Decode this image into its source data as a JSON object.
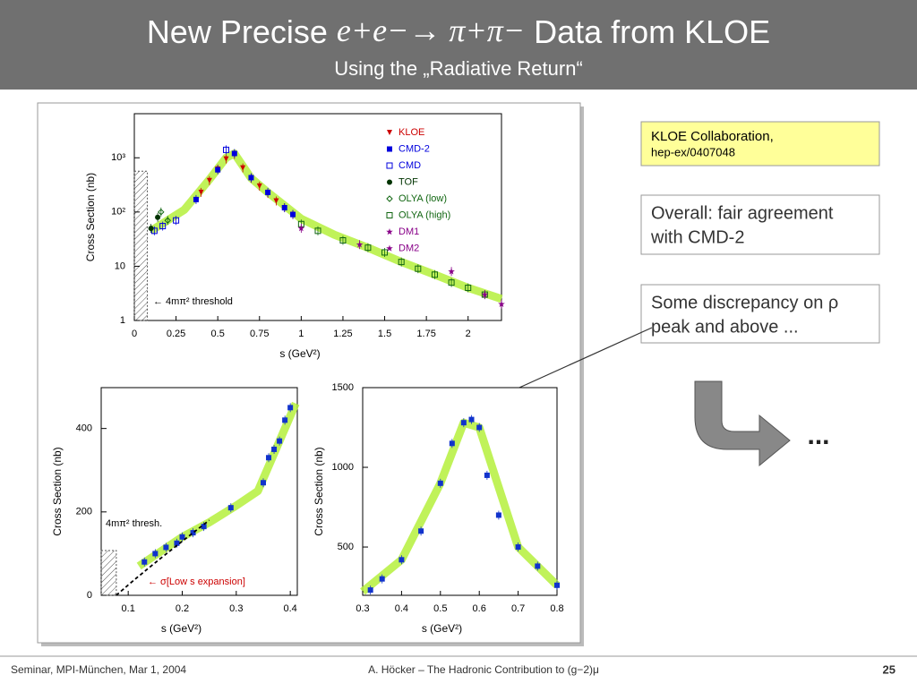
{
  "slide": {
    "title_parts": [
      "New Precise ",
      "e+e−→ π+π−",
      " Data from KLOE"
    ],
    "subtitle": "Using the „Radiative Return“",
    "boxes": [
      [
        "KLOE Collaboration,",
        "hep-ex/0407048"
      ],
      [
        "Overall: fair agreement",
        "with CMD-2"
      ],
      [
        "Some discrepancy on ρ",
        "peak and above ..."
      ]
    ],
    "ellipsis": "...",
    "footer": {
      "left": "Seminar, MPI-München, Mar 1, 2004",
      "center": "A. Höcker – The Hadronic Contribution to (g−2)μ",
      "page": "25"
    }
  },
  "chart_data": [
    {
      "type": "scatter",
      "ylog": true,
      "xlabel": "s    (GeV²)",
      "ylabel": "Cross Section  (nb)",
      "xlim": [
        0,
        2.2
      ],
      "ylim": [
        1,
        6500
      ],
      "xticks": [
        0,
        0.25,
        0.5,
        0.75,
        1,
        1.25,
        1.5,
        1.75,
        2
      ],
      "yticks": [
        1,
        10,
        {
          "value": 100,
          "label": "10²"
        },
        {
          "value": 1000,
          "label": "10³"
        }
      ],
      "annotation": "← 4mπ² threshold",
      "legend": "upper right",
      "band_color": "#b5f03c",
      "band": {
        "x": [
          0.1,
          0.3,
          0.45,
          0.55,
          0.6,
          0.7,
          0.8,
          1.0,
          1.2,
          1.4,
          1.6,
          1.8,
          2.0,
          2.2
        ],
        "values": [
          45,
          110,
          400,
          1000,
          1200,
          420,
          230,
          75,
          38,
          22,
          12,
          7,
          4,
          2.5
        ]
      },
      "series": [
        {
          "name": "KLOE",
          "color": "#cc0000",
          "marker": "tri",
          "x": [
            0.4,
            0.45,
            0.5,
            0.55,
            0.6,
            0.65,
            0.7,
            0.75,
            0.8,
            0.85,
            0.9,
            0.95
          ],
          "values": [
            230,
            380,
            620,
            950,
            1150,
            650,
            420,
            300,
            220,
            160,
            120,
            90
          ]
        },
        {
          "name": "CMD-2",
          "color": "#0000dd",
          "marker": "square",
          "x": [
            0.37,
            0.5,
            0.6,
            0.7,
            0.8,
            0.9,
            0.95
          ],
          "values": [
            170,
            600,
            1200,
            430,
            230,
            120,
            90
          ]
        },
        {
          "name": "CMD",
          "color": "#0000dd",
          "marker": "osquare",
          "x": [
            0.12,
            0.17,
            0.25,
            0.55
          ],
          "values": [
            45,
            55,
            70,
            1400
          ]
        },
        {
          "name": "TOF",
          "color": "#003300",
          "marker": "circle",
          "x": [
            0.1,
            0.14
          ],
          "values": [
            50,
            80
          ]
        },
        {
          "name": "OLYA (low)",
          "color": "#116611",
          "marker": "diamond",
          "x": [
            0.16,
            0.2
          ],
          "values": [
            100,
            70
          ]
        },
        {
          "name": "OLYA (high)",
          "color": "#116611",
          "marker": "osquare",
          "x": [
            1.0,
            1.1,
            1.25,
            1.4,
            1.5,
            1.6,
            1.7,
            1.8,
            1.9,
            2.0,
            2.1
          ],
          "values": [
            60,
            45,
            30,
            22,
            18,
            12,
            9,
            7,
            5,
            4,
            3
          ]
        },
        {
          "name": "DM1",
          "color": "#880088",
          "marker": "star",
          "x": [
            1.0,
            1.9,
            2.2
          ],
          "values": [
            50,
            8,
            2
          ]
        },
        {
          "name": "DM2",
          "color": "#880088",
          "marker": "star",
          "x": [
            1.35,
            2.1
          ],
          "values": [
            25,
            3
          ]
        }
      ]
    },
    {
      "type": "scatter",
      "ylog": false,
      "xlabel": "s    (GeV²)",
      "ylabel": "Cross Section  (nb)",
      "xlim": [
        0.05,
        0.413
      ],
      "ylim": [
        0,
        498
      ],
      "xticks": [
        0.1,
        0.2,
        0.3,
        0.4
      ],
      "yticks": [
        0,
        200,
        400
      ],
      "annotation": "4mπ² thresh.",
      "annotation2": "← σ[Low s expansion]",
      "band_color": "#b5f03c",
      "band": {
        "x": [
          0.12,
          0.2,
          0.25,
          0.3,
          0.34,
          0.37,
          0.41
        ],
        "values": [
          70,
          140,
          175,
          215,
          250,
          340,
          460
        ]
      },
      "series": [
        {
          "color": "#1133cc",
          "marker": "square",
          "x": [
            0.13,
            0.15,
            0.17,
            0.19,
            0.2,
            0.22,
            0.24,
            0.29,
            0.35,
            0.36,
            0.37,
            0.38,
            0.39,
            0.4
          ],
          "values": [
            80,
            100,
            115,
            125,
            140,
            150,
            165,
            210,
            270,
            330,
            350,
            370,
            420,
            450
          ]
        }
      ]
    },
    {
      "type": "scatter",
      "ylog": false,
      "xlabel": "s    (GeV²)",
      "ylabel": "Cross Section  (nb)",
      "xlim": [
        0.3,
        0.8
      ],
      "ylim": [
        197,
        1500
      ],
      "xticks": [
        0.3,
        0.4,
        0.5,
        0.6,
        0.7,
        0.8
      ],
      "yticks": [
        500,
        1000,
        1500
      ],
      "band_color": "#b5f03c",
      "band": {
        "x": [
          0.3,
          0.4,
          0.5,
          0.56,
          0.6,
          0.7,
          0.8
        ],
        "values": [
          220,
          420,
          900,
          1280,
          1250,
          500,
          260
        ]
      },
      "series": [
        {
          "color": "#1133cc",
          "marker": "square",
          "x": [
            0.32,
            0.35,
            0.4,
            0.45,
            0.5,
            0.53,
            0.56,
            0.58,
            0.6,
            0.62,
            0.65,
            0.7,
            0.75,
            0.8
          ],
          "values": [
            230,
            300,
            420,
            600,
            900,
            1150,
            1280,
            1300,
            1250,
            950,
            700,
            500,
            380,
            260
          ]
        }
      ]
    }
  ]
}
